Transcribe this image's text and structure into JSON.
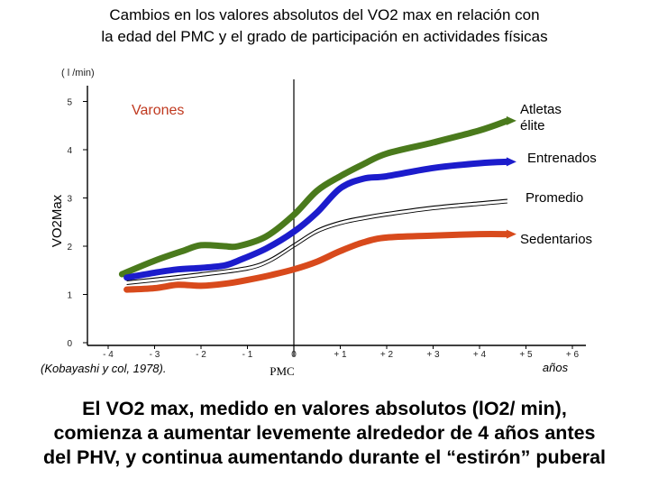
{
  "slide": {
    "title_line1": "Cambios en los valores absolutos del VO2 max en relación con",
    "title_line2": "la edad  del PMC y el grado de participación en actividades físicas",
    "caption_line1": "El VO2 max, medido en valores absolutos (lO2/ min),",
    "caption_line2": "comienza a aumentar levemente alrededor de 4 años antes",
    "caption_line3": "del PHV, y continua aumentando durante el “estirón” puberal"
  },
  "chart_data": {
    "type": "line",
    "unit_label": "( l /min)",
    "ylabel": "VO2Max",
    "xlabel": "años",
    "x_marker_label": "PMC",
    "group_label": "Varones",
    "source": "(Kobayashi y col, 1978).",
    "xlim": [
      -4.3,
      6.4
    ],
    "ylim": [
      0,
      5.4
    ],
    "x_ticks": [
      {
        "value": -4,
        "label": "- 4"
      },
      {
        "value": -3,
        "label": "- 3"
      },
      {
        "value": -2,
        "label": "- 2"
      },
      {
        "value": -1,
        "label": "- 1"
      },
      {
        "value": 0,
        "label": "0"
      },
      {
        "value": 1,
        "label": "+ 1"
      },
      {
        "value": 2,
        "label": "+ 2"
      },
      {
        "value": 3,
        "label": "+ 3"
      },
      {
        "value": 4,
        "label": "+ 4"
      },
      {
        "value": 5,
        "label": "+ 5"
      },
      {
        "value": 6,
        "label": "+ 6"
      }
    ],
    "y_ticks": [
      {
        "value": 0,
        "label": "0"
      },
      {
        "value": 1,
        "label": "1"
      },
      {
        "value": 2,
        "label": "2"
      },
      {
        "value": 3,
        "label": "3"
      },
      {
        "value": 4,
        "label": "4"
      },
      {
        "value": 5,
        "label": "5"
      }
    ],
    "series": [
      {
        "name": "Atletas élite",
        "label_lines": [
          "Atletas",
          "élite"
        ],
        "color": "#4a7a1c",
        "thick": true,
        "x": [
          -3.7,
          -3.0,
          -2.4,
          -2.0,
          -1.5,
          -1.2,
          -0.6,
          0,
          0.5,
          1.0,
          1.5,
          2.0,
          3.0,
          4.0,
          4.6
        ],
        "y": [
          1.42,
          1.7,
          1.9,
          2.02,
          2.0,
          2.0,
          2.2,
          2.65,
          3.15,
          3.45,
          3.7,
          3.92,
          4.15,
          4.4,
          4.6
        ]
      },
      {
        "name": "Entrenados",
        "label_lines": [
          "Entrenados"
        ],
        "color": "#1c1ccc",
        "thick": true,
        "x": [
          -3.6,
          -3.0,
          -2.5,
          -2.0,
          -1.5,
          -1.2,
          -0.6,
          0,
          0.5,
          1.0,
          1.5,
          2.0,
          3.0,
          4.0,
          4.6
        ],
        "y": [
          1.35,
          1.45,
          1.52,
          1.55,
          1.6,
          1.7,
          1.95,
          2.3,
          2.7,
          3.2,
          3.4,
          3.45,
          3.62,
          3.72,
          3.75
        ]
      },
      {
        "name": "Promedio",
        "label_lines": [
          "Promedio"
        ],
        "color": "#000000",
        "thick": false,
        "x": [
          -3.6,
          -3.0,
          -2.0,
          -1.0,
          -0.5,
          0,
          0.5,
          1.0,
          1.5,
          2.0,
          3.0,
          4.0,
          4.6
        ],
        "y": [
          1.28,
          1.34,
          1.45,
          1.58,
          1.75,
          2.05,
          2.35,
          2.52,
          2.62,
          2.7,
          2.83,
          2.92,
          2.97
        ]
      },
      {
        "name": "Sedentarios",
        "label_lines": [
          "Sedentarios"
        ],
        "color": "#d84a1c",
        "thick": true,
        "x": [
          -3.6,
          -3.0,
          -2.5,
          -2.0,
          -1.5,
          -1.0,
          -0.5,
          0,
          0.5,
          1.0,
          1.5,
          2.0,
          3.0,
          4.0,
          4.6
        ],
        "y": [
          1.1,
          1.13,
          1.2,
          1.18,
          1.22,
          1.3,
          1.4,
          1.52,
          1.68,
          1.9,
          2.08,
          2.18,
          2.22,
          2.25,
          2.25
        ]
      }
    ]
  }
}
